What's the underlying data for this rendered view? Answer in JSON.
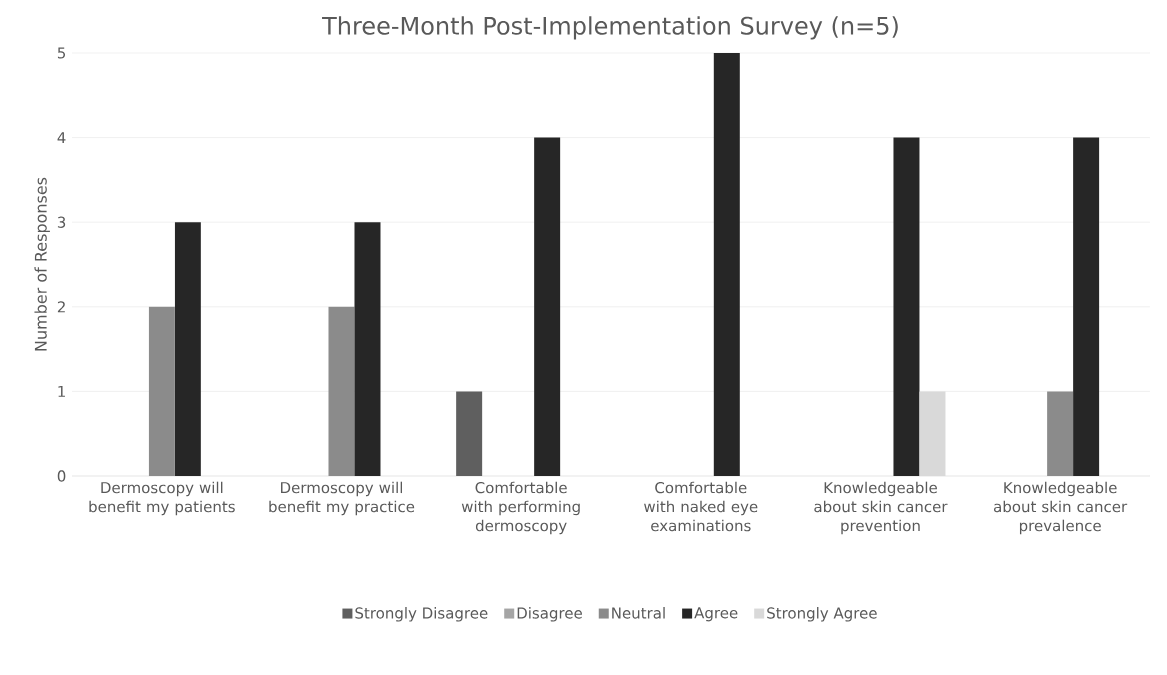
{
  "chart_data": {
    "type": "bar",
    "title": "Three-Month Post-Implementation Survey (n=5)",
    "ylabel": "Number of Responses",
    "categories": [
      "Dermoscopy will benefit my patients",
      "Dermoscopy will benefit my practice",
      "Comfortable with performing dermoscopy",
      "Comfortable with naked eye examinations",
      "Knowledgeable about skin cancer prevention",
      "Knowledgeable about skin cancer prevalence"
    ],
    "series": [
      {
        "name": "Strongly Disagree",
        "color": "#5f5f5f",
        "values": [
          0,
          0,
          1,
          0,
          0,
          0
        ]
      },
      {
        "name": "Disagree",
        "color": "#a5a5a5",
        "values": [
          0,
          0,
          0,
          0,
          0,
          0
        ]
      },
      {
        "name": "Neutral",
        "color": "#8b8b8b",
        "values": [
          2,
          2,
          0,
          0,
          0,
          1
        ]
      },
      {
        "name": "Agree",
        "color": "#262626",
        "values": [
          3,
          3,
          4,
          5,
          4,
          4
        ]
      },
      {
        "name": "Strongly Agree",
        "color": "#d9d9d9",
        "values": [
          0,
          0,
          0,
          0,
          1,
          0
        ]
      }
    ],
    "ylim": [
      0,
      5
    ],
    "yticks": [
      0,
      1,
      2,
      3,
      4,
      5
    ],
    "grid": "y",
    "legend": "bottom"
  }
}
